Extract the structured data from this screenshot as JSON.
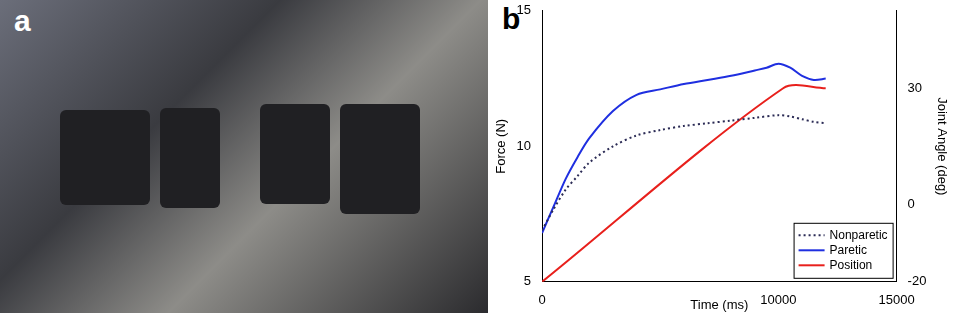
{
  "panel_labels": [
    "a",
    "b"
  ],
  "chart_data": {
    "type": "line",
    "x_label": "Time (ms)",
    "y_label": "Force (N)",
    "y2_label": "Joint Angle (deg)",
    "xlim": [
      0,
      15000
    ],
    "xticks": [
      0,
      10000,
      15000
    ],
    "ylim": [
      5,
      15
    ],
    "yticks": [
      5,
      10,
      15
    ],
    "y2lim": [
      -20,
      50
    ],
    "y2ticks": [
      -20,
      0,
      30
    ],
    "grid": false,
    "legend": "lower right",
    "series": [
      {
        "name": "Nonparetic",
        "color": "#2b2b55",
        "line_style": "dotted",
        "x": [
          0,
          500,
          1000,
          1500,
          2000,
          3000,
          4000,
          5000,
          6000,
          7000,
          8000,
          9000,
          10000,
          10500,
          11000,
          11500,
          12000
        ],
        "values": [
          6.9,
          7.7,
          8.4,
          8.9,
          9.4,
          10.0,
          10.4,
          10.6,
          10.75,
          10.85,
          10.95,
          11.05,
          11.15,
          11.1,
          11.0,
          10.9,
          10.85
        ]
      },
      {
        "name": "Paretic",
        "color": "#1f2fe0",
        "line_style": "solid",
        "x": [
          0,
          500,
          1000,
          1500,
          2000,
          3000,
          4000,
          5000,
          6000,
          7000,
          8000,
          9000,
          9500,
          10000,
          10500,
          11000,
          11500,
          12000
        ],
        "values": [
          6.8,
          7.8,
          8.8,
          9.6,
          10.3,
          11.3,
          11.9,
          12.1,
          12.3,
          12.45,
          12.6,
          12.8,
          12.9,
          13.05,
          12.9,
          12.6,
          12.45,
          12.5
        ]
      },
      {
        "name": "Position",
        "color": "#e8201c",
        "line_style": "solid",
        "axis": "y2",
        "x": [
          0,
          10200,
          12000
        ],
        "values": [
          -20,
          30,
          30
        ]
      }
    ]
  }
}
